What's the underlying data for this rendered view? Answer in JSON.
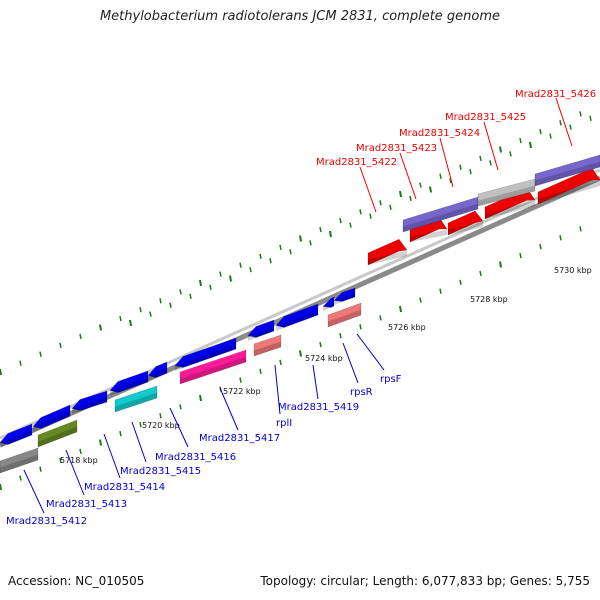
{
  "title": "Methylobacterium radiotolerans JCM 2831, complete genome",
  "footer": {
    "accession": "Accession: NC_010505",
    "stats": "Topology: circular; Length: 6,077,833 bp; Genes: 5,755"
  },
  "colors": {
    "forward_label": "#ee0000",
    "reverse_label": "#0000cc",
    "tick": "#1a7a1a",
    "backbone": "#8a8a8a"
  },
  "scale_labels": [
    "5718 kbp",
    "5720 kbp",
    "5722 kbp",
    "5724 kbp",
    "5726 kbp",
    "5728 kbp",
    "5730 kbp"
  ],
  "forward_labels": [
    "Mrad2831_5422",
    "Mrad2831_5423",
    "Mrad2831_5424",
    "Mrad2831_5425",
    "Mrad2831_5426"
  ],
  "reverse_labels": [
    "Mrad2831_5412",
    "Mrad2831_5413",
    "Mrad2831_5414",
    "Mrad2831_5415",
    "Mrad2831_5416",
    "Mrad2831_5417",
    "rplI",
    "Mrad2831_5419",
    "rpsR",
    "rpsF"
  ]
}
